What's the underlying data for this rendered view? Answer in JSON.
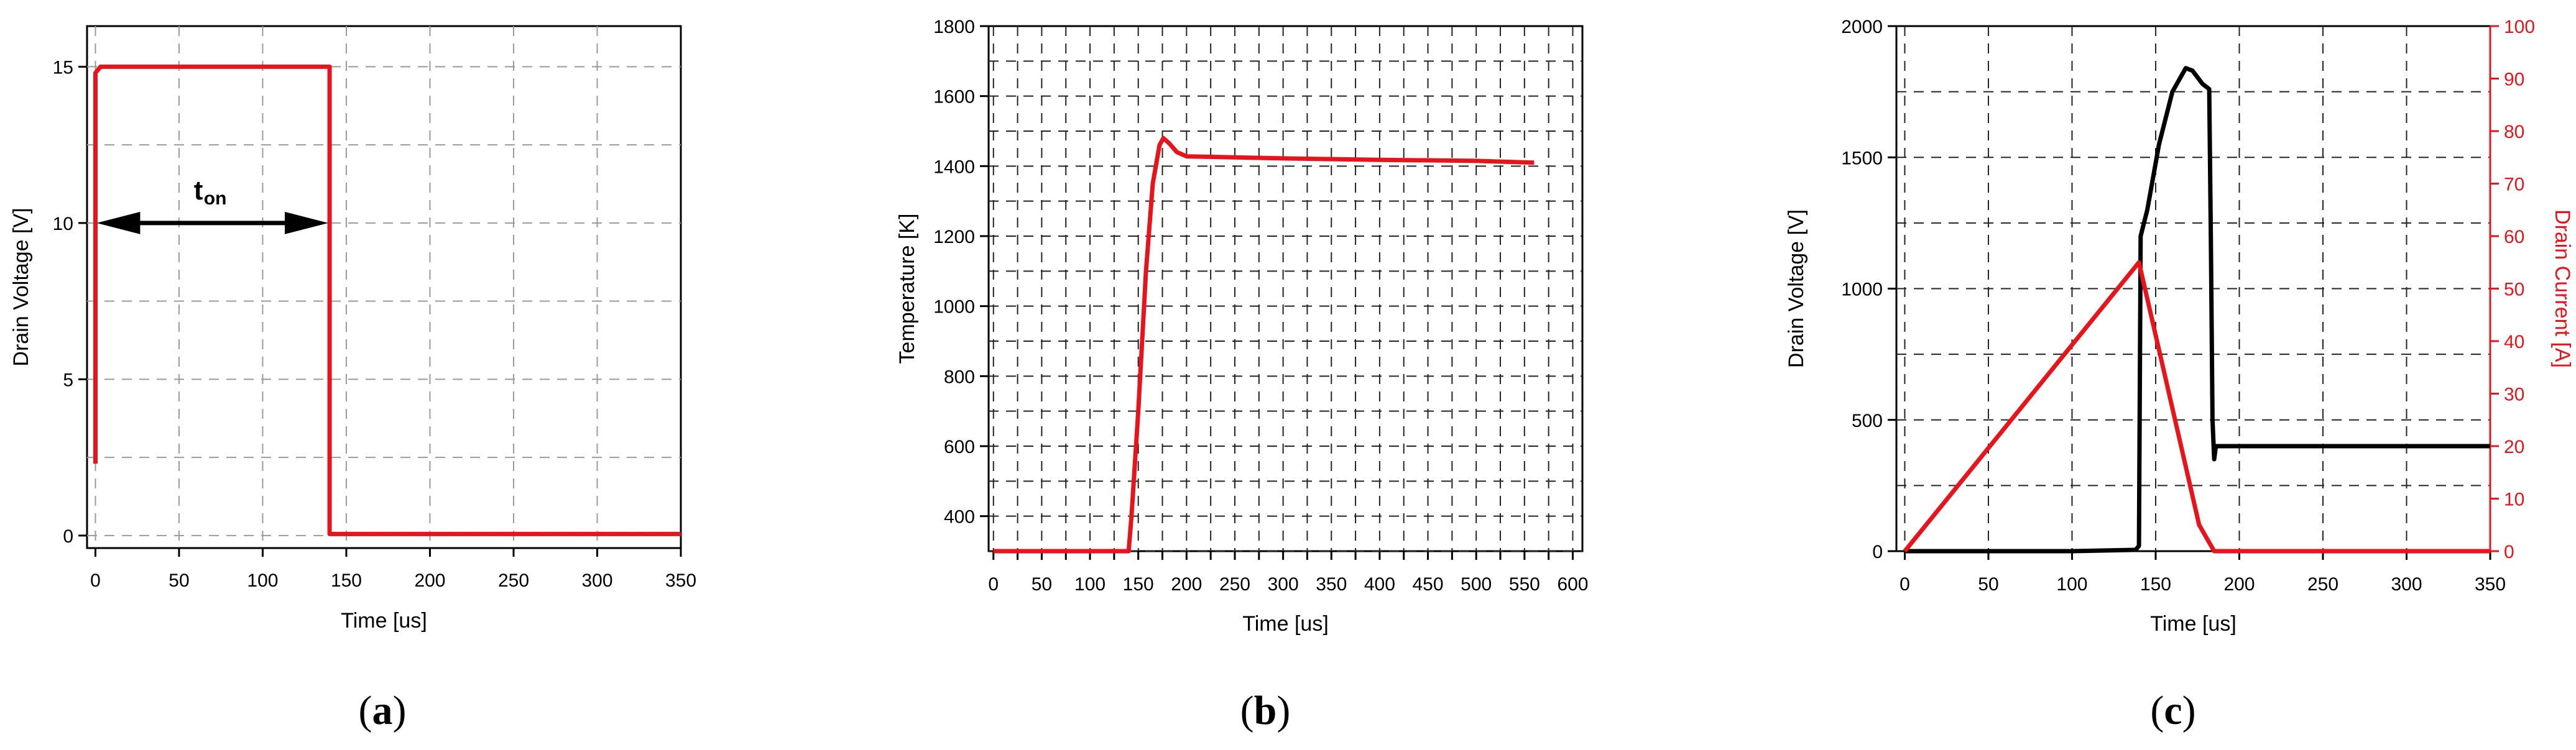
{
  "chart_data": [
    {
      "type": "line",
      "panel_label": "a",
      "xlabel": "Time [us]",
      "ylabel": "Drain Voltage [V]",
      "xlim": [
        -5,
        350
      ],
      "ylim": [
        -0.4,
        16.3
      ],
      "x_ticks": [
        0,
        50,
        100,
        150,
        200,
        250,
        300,
        350
      ],
      "y_ticks": [
        0,
        5,
        10,
        15
      ],
      "grid": true,
      "series": [
        {
          "color": "#e8141b",
          "points": [
            [
              0,
              2.3
            ],
            [
              0,
              14.8
            ],
            [
              3,
              15
            ],
            [
              140,
              15
            ],
            [
              140,
              0.05
            ],
            [
              350,
              0.05
            ]
          ]
        }
      ],
      "annotation": {
        "text": "t",
        "subscript": "on",
        "x_from": 0,
        "x_to": 140,
        "y": 10
      }
    },
    {
      "type": "line",
      "panel_label": "b",
      "xlabel": "Time [us]",
      "ylabel": "Temperature [K]",
      "xlim": [
        -5,
        610
      ],
      "ylim": [
        300,
        1800
      ],
      "x_ticks": [
        0,
        25,
        50,
        75,
        100,
        125,
        150,
        175,
        200,
        225,
        250,
        275,
        300,
        325,
        350,
        375,
        400,
        425,
        450,
        475,
        500,
        525,
        550,
        575,
        600
      ],
      "x_tick_labels": [
        "0",
        "",
        "50",
        "",
        "100",
        "",
        "150",
        "",
        "200",
        "",
        "250",
        "",
        "300",
        "",
        "350",
        "",
        "400",
        "",
        "450",
        "",
        "500",
        "",
        "550",
        "",
        "600"
      ],
      "y_ticks": [
        400,
        600,
        800,
        1000,
        1200,
        1400,
        1600,
        1800
      ],
      "grid": true,
      "series": [
        {
          "color": "#e8141b",
          "points": [
            [
              0,
              300
            ],
            [
              140,
              300
            ],
            [
              143,
              400
            ],
            [
              150,
              700
            ],
            [
              158,
              1100
            ],
            [
              165,
              1350
            ],
            [
              172,
              1460
            ],
            [
              176,
              1480
            ],
            [
              182,
              1465
            ],
            [
              190,
              1440
            ],
            [
              200,
              1428
            ],
            [
              250,
              1425
            ],
            [
              300,
              1422
            ],
            [
              400,
              1418
            ],
            [
              500,
              1415
            ],
            [
              560,
              1410
            ]
          ]
        }
      ]
    },
    {
      "type": "line",
      "panel_label": "c",
      "xlabel": "Time [us]",
      "ylabel": "Drain Voltage [V]",
      "ylabel_right": "Drain Current [A]",
      "xlim": [
        -5,
        350
      ],
      "ylim": [
        0,
        2000
      ],
      "ylim_right": [
        0,
        100
      ],
      "x_ticks": [
        0,
        50,
        100,
        150,
        200,
        250,
        300,
        350
      ],
      "y_ticks": [
        0,
        500,
        1000,
        1500,
        2000
      ],
      "y_ticks_right": [
        0,
        10,
        20,
        30,
        40,
        50,
        60,
        70,
        80,
        90,
        100
      ],
      "right_axis_color": "#e8141b",
      "grid": true,
      "series": [
        {
          "color": "#000000",
          "axis": "left",
          "points": [
            [
              0,
              0
            ],
            [
              100,
              0
            ],
            [
              138,
              5
            ],
            [
              140,
              20
            ],
            [
              141,
              1200
            ],
            [
              145,
              1300
            ],
            [
              152,
              1550
            ],
            [
              160,
              1750
            ],
            [
              168,
              1840
            ],
            [
              172,
              1830
            ],
            [
              178,
              1780
            ],
            [
              182,
              1760
            ],
            [
              183,
              1200
            ],
            [
              184,
              500
            ],
            [
              185,
              350
            ],
            [
              186,
              400
            ],
            [
              350,
              400
            ]
          ]
        },
        {
          "color": "#e8141b",
          "axis": "right",
          "points": [
            [
              0,
              0
            ],
            [
              140,
              55
            ],
            [
              158,
              30
            ],
            [
              176,
              5
            ],
            [
              185,
              0
            ],
            [
              350,
              0
            ]
          ]
        }
      ]
    }
  ]
}
